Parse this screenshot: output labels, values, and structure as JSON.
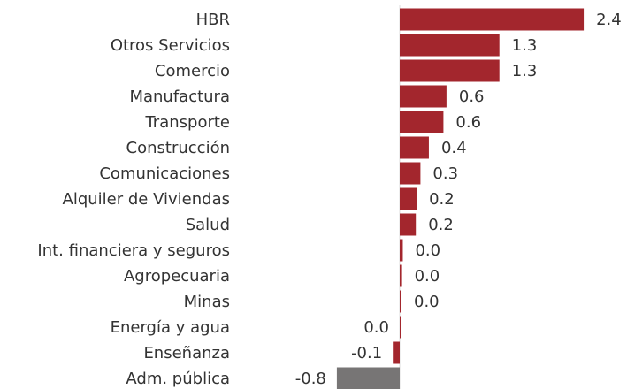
{
  "chart_data": {
    "type": "bar",
    "orientation": "horizontal",
    "categories": [
      "HBR",
      "Otros Servicios",
      "Comercio",
      "Manufactura",
      "Transporte",
      "Construcción",
      "Comunicaciones",
      "Alquiler de Viviendas",
      "Salud",
      "Int. financiera y seguros",
      "Agropecuaria",
      "Minas",
      "Energía y agua",
      "Enseñanza",
      "Adm. pública"
    ],
    "values": [
      2.4,
      1.3,
      1.3,
      0.61,
      0.57,
      0.38,
      0.27,
      0.22,
      0.21,
      0.04,
      0.03,
      0.01,
      0,
      -0.09,
      -0.82
    ],
    "value_labels": [
      "2.4",
      "1.3",
      "1.3",
      "0.6",
      "0.6",
      "0.4",
      "0.3",
      "0.2",
      "0.2",
      "0.0",
      "0.0",
      "0.0",
      "0.0",
      "-0.1",
      "-0.8"
    ],
    "colors": [
      "#a3262d",
      "#a3262d",
      "#a3262d",
      "#a3262d",
      "#a3262d",
      "#a3262d",
      "#a3262d",
      "#a3262d",
      "#a3262d",
      "#a3262d",
      "#a3262d",
      "#a3262d",
      "#a3262d",
      "#a3262d",
      "#777575"
    ]
  }
}
